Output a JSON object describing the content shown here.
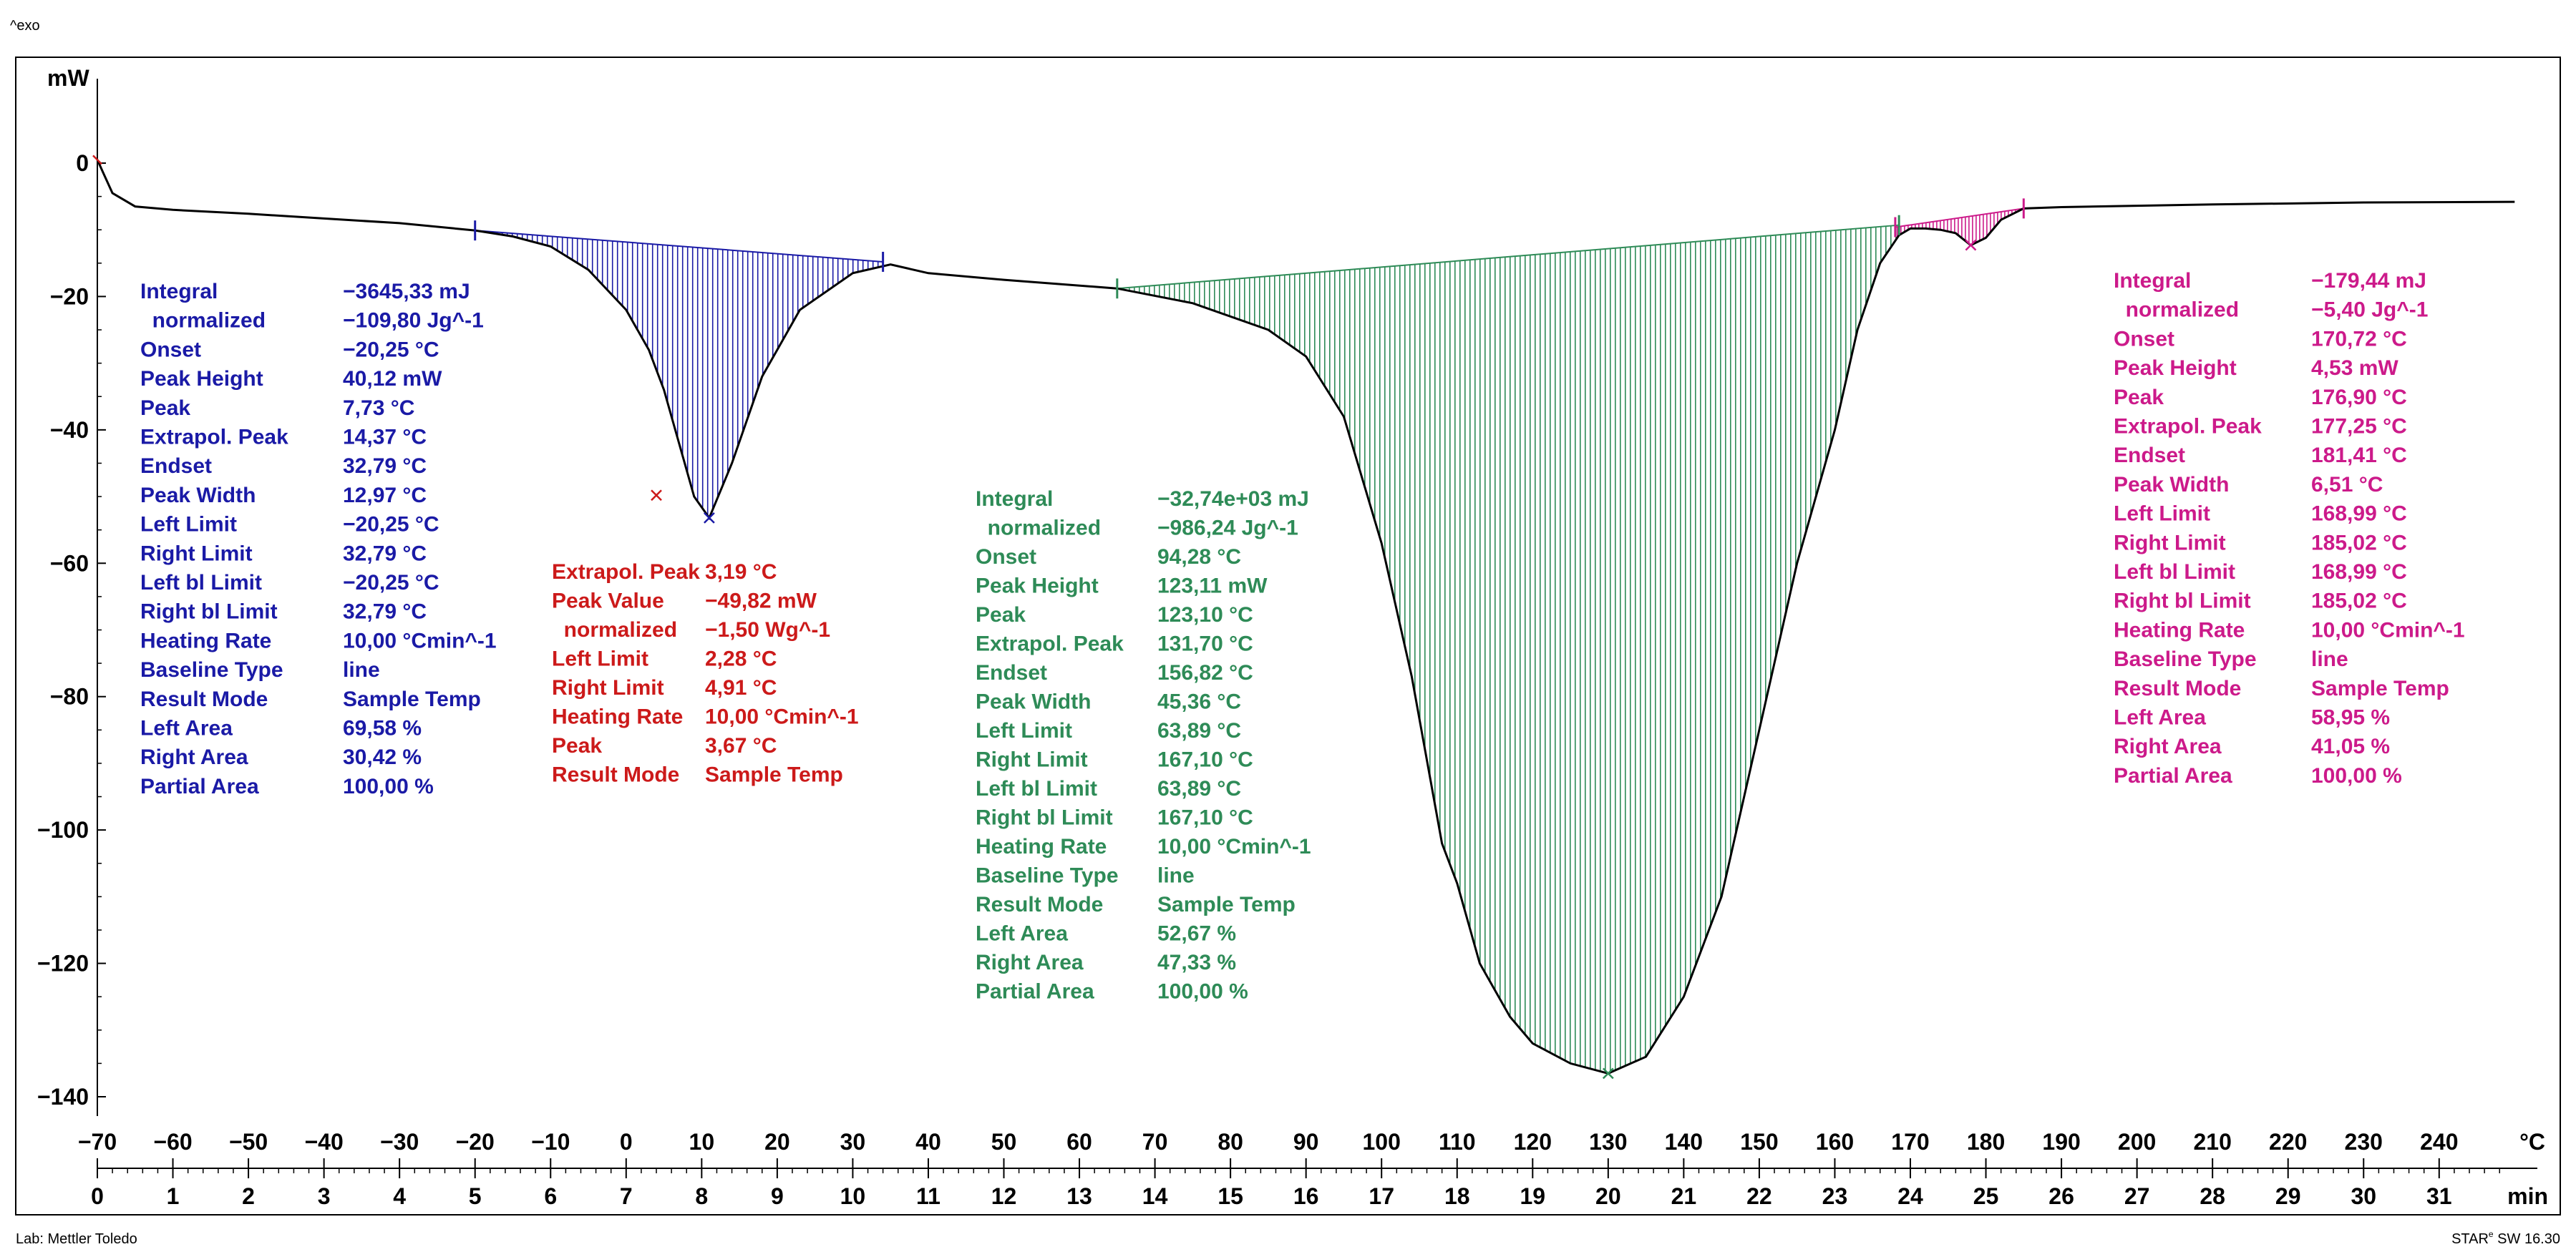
{
  "chart_data": {
    "type": "line",
    "title": "",
    "ylabel": "mW",
    "exo_label": "^exo",
    "xlabel_temp": "°C",
    "xlabel_time": "min",
    "ylim": [
      -142,
      6
    ],
    "xlim_time": [
      0,
      32.3
    ],
    "xlim_temp": [
      -70,
      246
    ],
    "y_ticks": [
      0,
      -20,
      -40,
      -60,
      -80,
      -100,
      -120,
      -140
    ],
    "y_tick_labels": [
      "0",
      "−20",
      "−40",
      "−60",
      "−80",
      "−100",
      "−120",
      "−140"
    ],
    "temp_ticks": [
      -70,
      -60,
      -50,
      -40,
      -30,
      -20,
      -10,
      0,
      10,
      20,
      30,
      40,
      50,
      60,
      70,
      80,
      90,
      100,
      110,
      120,
      130,
      140,
      150,
      160,
      170,
      180,
      190,
      200,
      210,
      220,
      230,
      240
    ],
    "temp_tick_labels": [
      "−70",
      "−60",
      "−50",
      "−40",
      "−30",
      "−20",
      "−10",
      "0",
      "10",
      "20",
      "30",
      "40",
      "50",
      "60",
      "70",
      "80",
      "90",
      "100",
      "110",
      "120",
      "130",
      "140",
      "150",
      "160",
      "170",
      "180",
      "190",
      "200",
      "210",
      "220",
      "230",
      "240"
    ],
    "time_ticks": [
      0,
      1,
      2,
      3,
      4,
      5,
      6,
      7,
      8,
      9,
      10,
      11,
      12,
      13,
      14,
      15,
      16,
      17,
      18,
      19,
      20,
      21,
      22,
      23,
      24,
      25,
      26,
      27,
      28,
      29,
      30,
      31
    ],
    "time_tick_labels": [
      "0",
      "1",
      "2",
      "3",
      "4",
      "5",
      "6",
      "7",
      "8",
      "9",
      "10",
      "11",
      "12",
      "13",
      "14",
      "15",
      "16",
      "17",
      "18",
      "19",
      "20",
      "21",
      "22",
      "23",
      "24",
      "25",
      "26",
      "27",
      "28",
      "29",
      "30",
      "31"
    ],
    "series": [
      {
        "name": "DSC curve",
        "color": "#000000",
        "x_time": [
          0.0,
          0.08,
          0.2,
          0.5,
          1.0,
          2.0,
          3.0,
          4.0,
          5.0,
          5.5,
          6.0,
          6.5,
          7.0,
          7.3,
          7.5,
          7.7,
          7.9,
          8.1,
          8.4,
          8.8,
          9.3,
          10.0,
          10.5,
          11.0,
          12.0,
          13.5,
          14.5,
          15.5,
          16.0,
          16.5,
          17.0,
          17.4,
          17.8,
          18.0,
          18.15,
          18.3,
          18.5,
          18.7,
          19.0,
          19.5,
          20.0,
          20.5,
          21.0,
          21.5,
          22.0,
          22.5,
          23.0,
          23.3,
          23.6,
          23.85,
          24.0,
          24.2,
          24.4,
          24.6,
          24.8,
          25.0,
          25.2,
          25.5,
          26.0,
          28.0,
          30.0,
          32.0
        ],
        "y_mw": [
          0.5,
          -1.5,
          -4.5,
          -6.5,
          -7.0,
          -7.6,
          -8.3,
          -9.0,
          -10.1,
          -11.0,
          -12.5,
          -16.0,
          -22.0,
          -28.0,
          -34.0,
          -42.0,
          -50.0,
          -53.2,
          -45.0,
          -32.0,
          -22.0,
          -16.5,
          -15.2,
          -16.5,
          -17.5,
          -18.8,
          -21.0,
          -25.0,
          -29.0,
          -38.0,
          -57.0,
          -77.0,
          -102.0,
          -108.0,
          -114.0,
          -120.0,
          -124.0,
          -128.0,
          -132.0,
          -135.0,
          -136.5,
          -134.0,
          -125.0,
          -110.0,
          -85.0,
          -60.0,
          -40.0,
          -25.0,
          -15.0,
          -10.8,
          -9.8,
          -9.8,
          -10.0,
          -10.5,
          -12.3,
          -11.2,
          -8.5,
          -6.8,
          -6.6,
          -6.2,
          -5.9,
          -5.8
        ]
      }
    ],
    "baselines": [
      {
        "name": "blue integration baseline",
        "x_time": [
          5.0,
          10.4
        ],
        "y_mw": [
          -10.1,
          -14.8
        ]
      },
      {
        "name": "green integration baseline",
        "x_time": [
          13.5,
          23.85
        ],
        "y_mw": [
          -18.8,
          -9.3
        ]
      },
      {
        "name": "magenta integration baseline",
        "x_time": [
          23.8,
          25.5
        ],
        "y_mw": [
          -9.6,
          -6.8
        ]
      }
    ],
    "peaks": [
      {
        "name": "blue peak",
        "color": "#1a1aa6",
        "x_time": 8.1,
        "y_mw": -53.2
      },
      {
        "name": "red peak",
        "color": "#cc1a1a",
        "x_time": 7.4,
        "y_mw": -49.8
      },
      {
        "name": "green peak",
        "color": "#2e8b57",
        "x_time": 20.0,
        "y_mw": -136.5
      },
      {
        "name": "magenta peak",
        "color": "#cc1a8a",
        "x_time": 24.8,
        "y_mw": -12.3
      }
    ]
  },
  "annotations": {
    "blue": {
      "color": "#1a1aa6",
      "rows": [
        [
          "Integral",
          "−3645,33 mJ"
        ],
        [
          "  normalized",
          "−109,80 Jg^-1"
        ],
        [
          "Onset",
          "−20,25 °C"
        ],
        [
          "Peak Height",
          "40,12 mW"
        ],
        [
          "Peak",
          "7,73 °C"
        ],
        [
          "Extrapol. Peak",
          "14,37 °C"
        ],
        [
          "Endset",
          "32,79 °C"
        ],
        [
          "Peak Width",
          "12,97 °C"
        ],
        [
          "Left Limit",
          "−20,25 °C"
        ],
        [
          "Right Limit",
          "32,79 °C"
        ],
        [
          "Left bl Limit",
          "−20,25 °C"
        ],
        [
          "Right bl Limit",
          "32,79 °C"
        ],
        [
          "Heating Rate",
          "10,00 °Cmin^-1"
        ],
        [
          "Baseline Type",
          "line"
        ],
        [
          "Result Mode",
          "Sample Temp"
        ],
        [
          "Left Area",
          "69,58 %"
        ],
        [
          "Right Area",
          "30,42 %"
        ],
        [
          "Partial Area",
          "100,00 %"
        ]
      ]
    },
    "red": {
      "color": "#cc1a1a",
      "rows": [
        [
          "Extrapol. Peak",
          "3,19 °C"
        ],
        [
          "Peak Value",
          "−49,82 mW"
        ],
        [
          "  normalized",
          "−1,50 Wg^-1"
        ],
        [
          "Left Limit",
          "2,28 °C"
        ],
        [
          "Right Limit",
          "4,91 °C"
        ],
        [
          "Heating Rate",
          "10,00 °Cmin^-1"
        ],
        [
          "Peak",
          "3,67 °C"
        ],
        [
          "Result Mode",
          "Sample Temp"
        ]
      ]
    },
    "green": {
      "color": "#2e8b57",
      "rows": [
        [
          "Integral",
          "−32,74e+03 mJ"
        ],
        [
          "  normalized",
          "−986,24 Jg^-1"
        ],
        [
          "Onset",
          "94,28 °C"
        ],
        [
          "Peak Height",
          "123,11 mW"
        ],
        [
          "Peak",
          "123,10 °C"
        ],
        [
          "Extrapol. Peak",
          "131,70 °C"
        ],
        [
          "Endset",
          "156,82 °C"
        ],
        [
          "Peak Width",
          "45,36 °C"
        ],
        [
          "Left Limit",
          "63,89 °C"
        ],
        [
          "Right Limit",
          "167,10 °C"
        ],
        [
          "Left bl Limit",
          "63,89 °C"
        ],
        [
          "Right bl Limit",
          "167,10 °C"
        ],
        [
          "Heating Rate",
          "10,00 °Cmin^-1"
        ],
        [
          "Baseline Type",
          "line"
        ],
        [
          "Result Mode",
          "Sample Temp"
        ],
        [
          "Left Area",
          "52,67 %"
        ],
        [
          "Right Area",
          "47,33 %"
        ],
        [
          "Partial Area",
          "100,00 %"
        ]
      ]
    },
    "magenta": {
      "color": "#cc1a8a",
      "rows": [
        [
          "Integral",
          "−179,44 mJ"
        ],
        [
          "  normalized",
          "−5,40 Jg^-1"
        ],
        [
          "Onset",
          "170,72 °C"
        ],
        [
          "Peak Height",
          "4,53 mW"
        ],
        [
          "Peak",
          "176,90 °C"
        ],
        [
          "Extrapol. Peak",
          "177,25 °C"
        ],
        [
          "Endset",
          "181,41 °C"
        ],
        [
          "Peak Width",
          "6,51 °C"
        ],
        [
          "Left Limit",
          "168,99 °C"
        ],
        [
          "Right Limit",
          "185,02 °C"
        ],
        [
          "Left bl Limit",
          "168,99 °C"
        ],
        [
          "Right bl Limit",
          "185,02 °C"
        ],
        [
          "Heating Rate",
          "10,00 °Cmin^-1"
        ],
        [
          "Baseline Type",
          "line"
        ],
        [
          "Result Mode",
          "Sample Temp"
        ],
        [
          "Left Area",
          "58,95 %"
        ],
        [
          "Right Area",
          "41,05 %"
        ],
        [
          "Partial Area",
          "100,00 %"
        ]
      ]
    }
  },
  "footer": {
    "lab": "Lab: Mettler Toledo",
    "software": "STAR",
    "software_sup": "e",
    "software_version": " SW 16.30"
  }
}
